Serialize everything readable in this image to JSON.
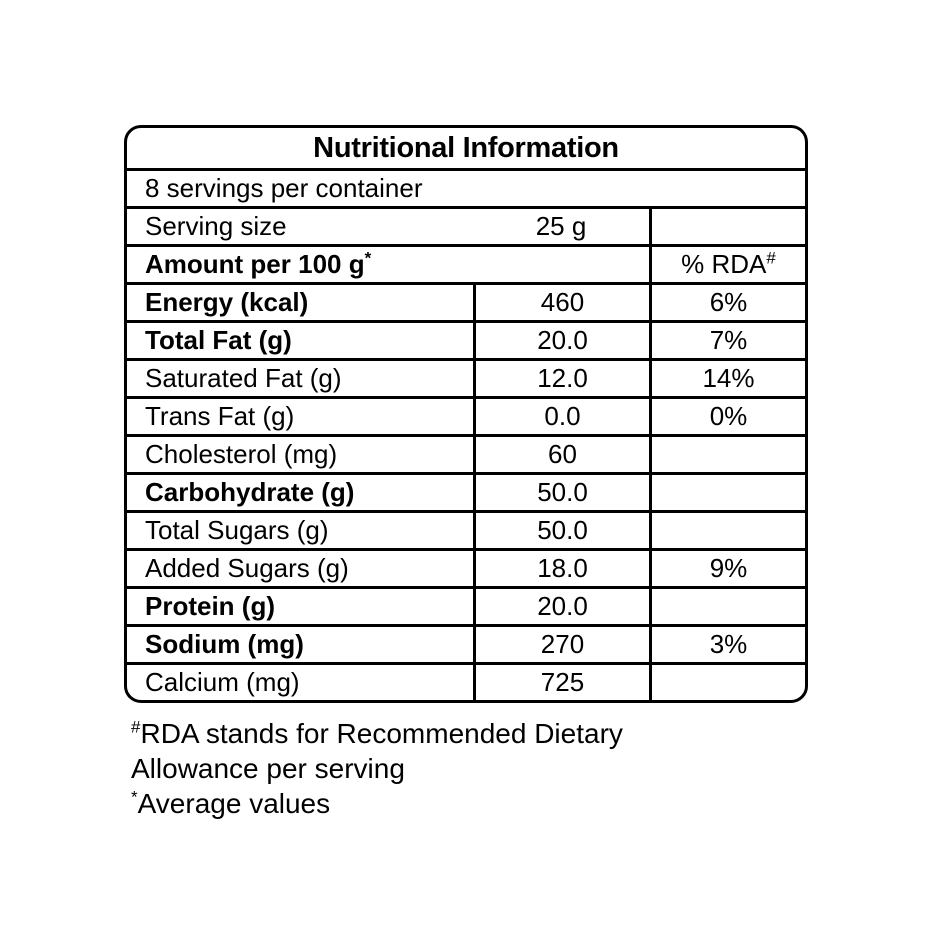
{
  "table": {
    "title": "Nutritional Information",
    "servings_line": "8 servings per container",
    "serving_size": {
      "label": "Serving size",
      "value": "25 g"
    },
    "header": {
      "amount_label": "Amount per 100 g",
      "amount_sup": "*",
      "rda_label": "% RDA",
      "rda_sup": "#"
    },
    "rows": [
      {
        "label": "Energy (kcal)",
        "bold": true,
        "value": "460",
        "rda": "6%"
      },
      {
        "label": "Total Fat (g)",
        "bold": true,
        "value": "20.0",
        "rda": "7%"
      },
      {
        "label": "Saturated Fat (g)",
        "bold": false,
        "value": "12.0",
        "rda": "14%"
      },
      {
        "label": "Trans Fat (g)",
        "bold": false,
        "value": "0.0",
        "rda": "0%"
      },
      {
        "label": "Cholesterol (mg)",
        "bold": false,
        "value": "60",
        "rda": ""
      },
      {
        "label": "Carbohydrate (g)",
        "bold": true,
        "value": "50.0",
        "rda": ""
      },
      {
        "label": "Total Sugars (g)",
        "bold": false,
        "value": "50.0",
        "rda": ""
      },
      {
        "label": "Added Sugars (g)",
        "bold": false,
        "value": "18.0",
        "rda": "9%"
      },
      {
        "label": "Protein (g)",
        "bold": true,
        "value": "20.0",
        "rda": ""
      },
      {
        "label": "Sodium (mg)",
        "bold": true,
        "value": "270",
        "rda": "3%"
      },
      {
        "label": "Calcium (mg)",
        "bold": false,
        "value": "725",
        "rda": ""
      }
    ]
  },
  "footnotes": {
    "rda": {
      "sup": "#",
      "lines": [
        "RDA stands for Recommended Dietary",
        "Allowance per serving"
      ]
    },
    "average": {
      "sup": "*",
      "line": "Average values"
    }
  },
  "colors": {
    "border": "#000000",
    "text": "#000000",
    "background": "#ffffff"
  }
}
